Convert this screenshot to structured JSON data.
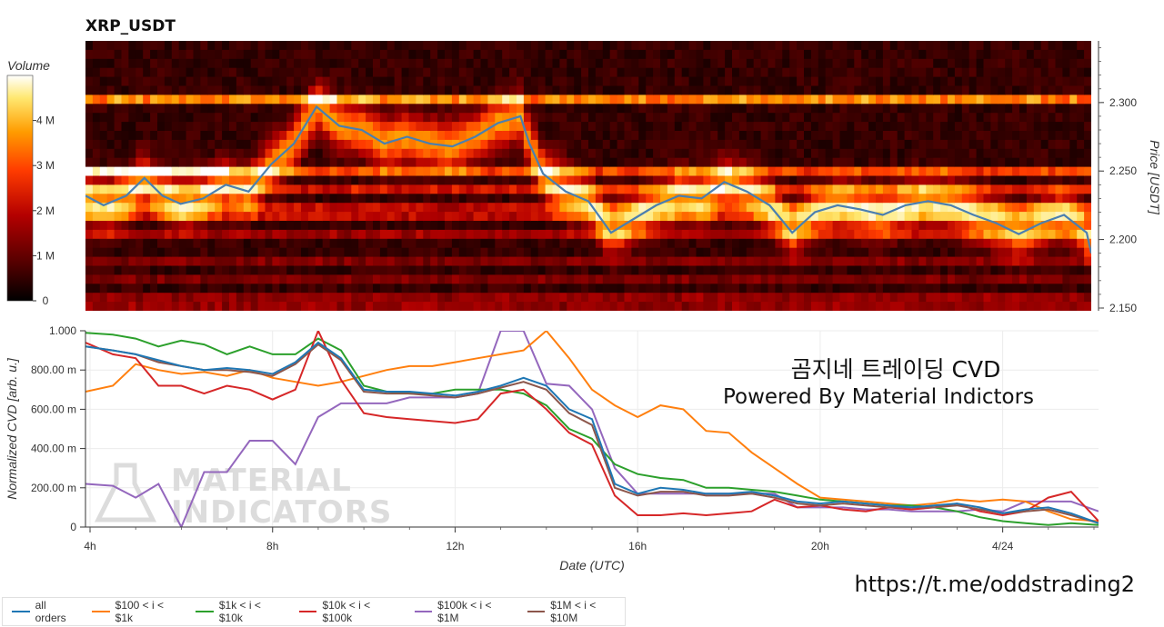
{
  "title": "XRP_USDT",
  "overlay_text_1": "곰지네 트레이딩 CVD",
  "overlay_text_2": "Powered By Material Indictors",
  "url_text": "https://t.me/oddstrading2",
  "watermark": {
    "line1": "MATERIAL",
    "line2": "INDICATORS"
  },
  "chart_data": [
    {
      "type": "heatmap",
      "title": "XRP_USDT",
      "colorbar_label": "Volume",
      "colorbar_ticks": [
        "0",
        "1 M",
        "2 M",
        "3 M",
        "4 M"
      ],
      "colorbar_values": [
        0,
        1000000,
        2000000,
        3000000,
        4000000
      ],
      "colorbar_max": 5000000,
      "colors": [
        "#000000",
        "#5a0000",
        "#b40000",
        "#ff3c00",
        "#ff9c00",
        "#ffe870",
        "#ffffff"
      ],
      "ylabel": "Price [USDT]",
      "yticks": [
        "2.150",
        "2.200",
        "2.250",
        "2.300"
      ],
      "ytick_values": [
        2.15,
        2.2,
        2.25,
        2.3
      ],
      "ylim": [
        2.148,
        2.345
      ],
      "xlim": [
        3.9,
        26.1
      ],
      "heat_bands": [
        {
          "price": 2.3,
          "intensity": 0.62
        },
        {
          "price": 2.25,
          "intensity": 0.45
        },
        {
          "price": 2.237,
          "intensity": 0.35
        },
        {
          "price": 2.22,
          "intensity": 0.3
        },
        {
          "price": 2.205,
          "intensity": 0.22
        },
        {
          "price": 2.185,
          "intensity": 0.16
        },
        {
          "price": 2.17,
          "intensity": 0.15
        },
        {
          "price": 2.155,
          "intensity": 0.2
        }
      ],
      "price_series": {
        "color": "#4a7fb0",
        "x": [
          3.9,
          4.3,
          4.8,
          5.2,
          5.6,
          6.0,
          6.5,
          7.0,
          7.5,
          8.0,
          8.5,
          9.0,
          9.5,
          10.0,
          10.5,
          11.0,
          11.5,
          12.0,
          12.5,
          13.0,
          13.5,
          13.7,
          14.0,
          14.5,
          15.0,
          15.5,
          16.0,
          16.5,
          17.0,
          17.5,
          18.0,
          18.5,
          19.0,
          19.5,
          20.0,
          20.5,
          21.0,
          21.5,
          22.0,
          22.5,
          23.0,
          23.5,
          24.0,
          24.5,
          25.0,
          25.5,
          26.0,
          26.1
        ],
        "y": [
          2.232,
          2.225,
          2.232,
          2.245,
          2.232,
          2.226,
          2.23,
          2.24,
          2.235,
          2.255,
          2.27,
          2.297,
          2.283,
          2.28,
          2.27,
          2.275,
          2.27,
          2.268,
          2.275,
          2.285,
          2.29,
          2.27,
          2.248,
          2.235,
          2.228,
          2.205,
          2.215,
          2.225,
          2.232,
          2.23,
          2.242,
          2.235,
          2.225,
          2.205,
          2.22,
          2.225,
          2.222,
          2.218,
          2.225,
          2.228,
          2.225,
          2.218,
          2.212,
          2.204,
          2.212,
          2.218,
          2.205,
          2.19
        ]
      }
    },
    {
      "type": "line",
      "xlabel": "Date (UTC)",
      "ylabel": "Normalized CVD [arb. u.]",
      "xticks": [
        "4h",
        "8h",
        "12h",
        "16h",
        "20h",
        "4/24"
      ],
      "xtick_values": [
        4,
        8,
        12,
        16,
        20,
        24
      ],
      "xlim": [
        3.9,
        26.1
      ],
      "yticks": [
        "0",
        "200.00 m",
        "400.00 m",
        "600.00 m",
        "800.00 m",
        "1.000"
      ],
      "ytick_values": [
        0,
        0.2,
        0.4,
        0.6,
        0.8,
        1.0
      ],
      "ylim": [
        0,
        1.0
      ],
      "grid": true,
      "legend_position": "bottom-left",
      "x": [
        3.9,
        4.5,
        5.0,
        5.5,
        6.0,
        6.5,
        7.0,
        7.5,
        8.0,
        8.5,
        9.0,
        9.5,
        10.0,
        10.5,
        11.0,
        11.5,
        12.0,
        12.5,
        13.0,
        13.5,
        14.0,
        14.5,
        15.0,
        15.5,
        16.0,
        16.5,
        17.0,
        17.5,
        18.0,
        18.5,
        19.0,
        19.5,
        20.0,
        20.5,
        21.0,
        21.5,
        22.0,
        22.5,
        23.0,
        23.5,
        24.0,
        24.5,
        25.0,
        25.5,
        26.1
      ],
      "series": [
        {
          "name": "all orders",
          "color": "#1f77b4",
          "values": [
            0.92,
            0.9,
            0.88,
            0.85,
            0.82,
            0.8,
            0.81,
            0.8,
            0.78,
            0.84,
            0.94,
            0.86,
            0.7,
            0.69,
            0.69,
            0.68,
            0.67,
            0.69,
            0.72,
            0.76,
            0.72,
            0.6,
            0.55,
            0.22,
            0.17,
            0.2,
            0.19,
            0.17,
            0.17,
            0.18,
            0.16,
            0.13,
            0.12,
            0.13,
            0.12,
            0.11,
            0.1,
            0.11,
            0.12,
            0.1,
            0.07,
            0.09,
            0.1,
            0.07,
            0.02
          ]
        },
        {
          "name": "$100 < i < $1k",
          "color": "#ff7f0e",
          "values": [
            0.69,
            0.72,
            0.83,
            0.8,
            0.78,
            0.79,
            0.77,
            0.8,
            0.76,
            0.74,
            0.72,
            0.74,
            0.77,
            0.8,
            0.82,
            0.82,
            0.84,
            0.86,
            0.88,
            0.9,
            1.0,
            0.86,
            0.7,
            0.62,
            0.56,
            0.62,
            0.6,
            0.49,
            0.48,
            0.38,
            0.3,
            0.22,
            0.15,
            0.14,
            0.13,
            0.12,
            0.11,
            0.12,
            0.14,
            0.13,
            0.14,
            0.13,
            0.08,
            0.04,
            0.03
          ]
        },
        {
          "name": "$1k < i < $10k",
          "color": "#2ca02c",
          "values": [
            0.99,
            0.98,
            0.96,
            0.92,
            0.95,
            0.93,
            0.88,
            0.92,
            0.88,
            0.88,
            0.96,
            0.9,
            0.72,
            0.69,
            0.68,
            0.68,
            0.7,
            0.7,
            0.7,
            0.68,
            0.62,
            0.5,
            0.45,
            0.32,
            0.27,
            0.25,
            0.24,
            0.2,
            0.2,
            0.19,
            0.18,
            0.16,
            0.14,
            0.13,
            0.12,
            0.11,
            0.11,
            0.1,
            0.08,
            0.05,
            0.03,
            0.02,
            0.01,
            0.02,
            0.01
          ]
        },
        {
          "name": "$10k < i < $100k",
          "color": "#d62728",
          "values": [
            0.94,
            0.88,
            0.86,
            0.72,
            0.72,
            0.68,
            0.72,
            0.7,
            0.65,
            0.7,
            1.0,
            0.75,
            0.58,
            0.56,
            0.55,
            0.54,
            0.53,
            0.55,
            0.68,
            0.7,
            0.6,
            0.48,
            0.42,
            0.16,
            0.06,
            0.06,
            0.07,
            0.06,
            0.07,
            0.08,
            0.14,
            0.1,
            0.11,
            0.09,
            0.08,
            0.1,
            0.09,
            0.1,
            0.12,
            0.08,
            0.06,
            0.08,
            0.15,
            0.18,
            0.03
          ]
        },
        {
          "name": "$100k < i < $1M",
          "color": "#9467bd",
          "values": [
            0.22,
            0.21,
            0.15,
            0.22,
            0.0,
            0.28,
            0.28,
            0.44,
            0.44,
            0.32,
            0.56,
            0.63,
            0.63,
            0.63,
            0.66,
            0.66,
            0.66,
            0.68,
            1.0,
            1.0,
            0.73,
            0.72,
            0.6,
            0.3,
            0.17,
            0.17,
            0.17,
            0.17,
            0.17,
            0.17,
            0.17,
            0.1,
            0.1,
            0.1,
            0.09,
            0.09,
            0.08,
            0.08,
            0.08,
            0.09,
            0.08,
            0.13,
            0.13,
            0.13,
            0.08
          ]
        },
        {
          "name": "$1M < i < $10M",
          "color": "#8c564b",
          "values": [
            0.92,
            0.9,
            0.88,
            0.84,
            0.82,
            0.8,
            0.8,
            0.79,
            0.77,
            0.83,
            0.93,
            0.85,
            0.69,
            0.68,
            0.68,
            0.67,
            0.66,
            0.68,
            0.71,
            0.74,
            0.7,
            0.58,
            0.52,
            0.2,
            0.16,
            0.18,
            0.18,
            0.16,
            0.16,
            0.17,
            0.15,
            0.12,
            0.11,
            0.12,
            0.11,
            0.1,
            0.1,
            0.1,
            0.11,
            0.09,
            0.07,
            0.08,
            0.09,
            0.06,
            0.02
          ]
        }
      ]
    }
  ]
}
